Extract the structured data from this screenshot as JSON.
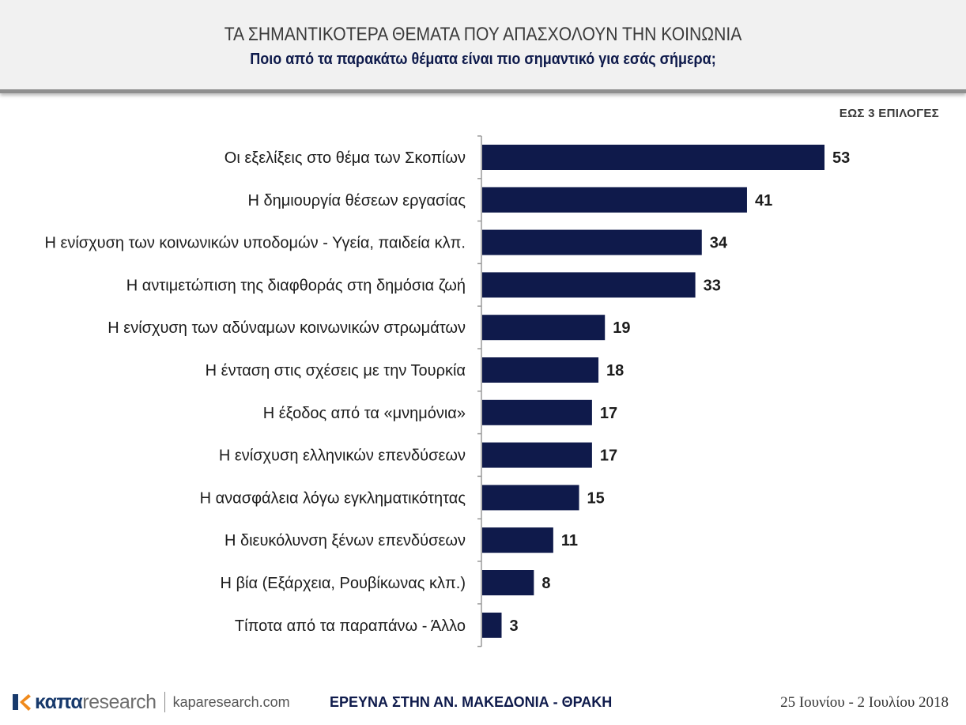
{
  "header": {
    "title": "ΤΑ ΣΗΜΑΝΤΙΚΟΤΕΡΑ ΘΕΜΑΤΑ ΠΟΥ ΑΠΑΣΧΟΛΟΥΝ ΤΗΝ ΚΟΙΝΩΝΙΑ",
    "subtitle": "Ποιο από τα παρακάτω θέματα είναι πιο σημαντικό για εσάς σήμερα;"
  },
  "note": "ΕΩΣ 3 ΕΠΙΛΟΓΕΣ",
  "colors": {
    "bar": "#0f1a4b",
    "header_bg": "#f1f1f1",
    "logo_orange": "#f08a1c",
    "logo_blue": "#183a6c"
  },
  "chart_data": {
    "type": "bar",
    "orientation": "horizontal",
    "title": "ΤΑ ΣΗΜΑΝΤΙΚΟΤΕΡΑ ΘΕΜΑΤΑ ΠΟΥ ΑΠΑΣΧΟΛΟΥΝ ΤΗΝ ΚΟΙΝΩΝΙΑ",
    "subtitle": "Ποιο από τα παρακάτω θέματα είναι πιο σημαντικό για εσάς σήμερα;",
    "categories": [
      "Οι εξελίξεις στο θέμα των Σκοπίων",
      "Η δημιουργία θέσεων εργασίας",
      "Η ενίσχυση των κοινωνικών υποδομών - Υγεία, παιδεία κλπ.",
      "Η αντιμετώπιση της διαφθοράς στη δημόσια ζωή",
      "Η ενίσχυση των αδύναμων κοινωνικών στρωμάτων",
      "Η ένταση στις σχέσεις με την Τουρκία",
      "Η έξοδος από τα «μνημόνια»",
      "Η ενίσχυση ελληνικών επενδύσεων",
      "Η ανασφάλεια λόγω εγκληματικότητας",
      "Η διευκόλυνση ξένων επενδύσεων",
      "Η βία (Εξάρχεια, Ρουβίκωνας κλπ.)",
      "Τίποτα από τα παραπάνω - Άλλο"
    ],
    "values": [
      53,
      41,
      34,
      33,
      19,
      18,
      17,
      17,
      15,
      11,
      8,
      3
    ],
    "xlim": [
      0,
      60
    ],
    "grid": false,
    "legend": "none",
    "data_labels": true
  },
  "footer": {
    "logo_kapa": "καπα",
    "logo_research": "research",
    "website": "kaparesearch.com",
    "survey": "ΕΡΕΥΝΑ ΣΤΗΝ ΑΝ. ΜΑΚΕΔΟΝΙΑ - ΘΡΑΚΗ",
    "date": "25 Ιουνίου - 2 Ιουλίου 2018"
  }
}
